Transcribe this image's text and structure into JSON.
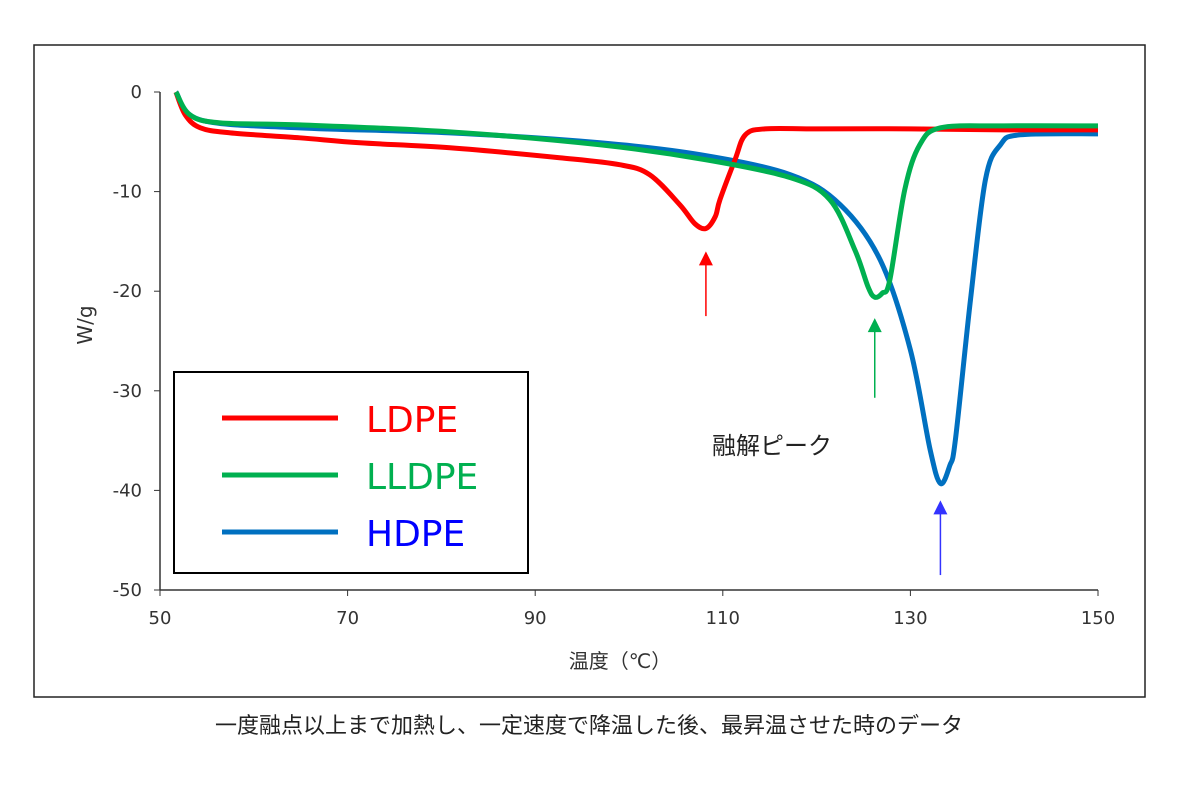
{
  "chart_data": {
    "type": "line",
    "title": "",
    "xlabel": "温度（℃）",
    "ylabel": "W/g",
    "xlim": [
      50,
      150
    ],
    "ylim": [
      -50,
      0
    ],
    "xticks": [
      50,
      70,
      90,
      110,
      130,
      150
    ],
    "yticks": [
      0,
      -10,
      -20,
      -30,
      -40,
      -50
    ],
    "grid": false,
    "legend": "bottom-left",
    "annotation": "融解ピーク",
    "caption": "一度融点以上まで加熱し、一定速度で降温した後、最昇温させた時のデータ",
    "series": [
      {
        "name": "LDPE",
        "color": "#ff0000",
        "label_color": "#ff0000",
        "x": [
          51.7,
          52.7,
          54.3,
          57.5,
          64.9,
          71.3,
          80.9,
          92.6,
          99,
          102.2,
          105.4,
          107,
          108.2,
          109.2,
          109.7,
          111.3,
          112.4,
          114.5,
          120,
          130,
          140,
          150
        ],
        "y": [
          0,
          -2.3,
          -3.6,
          -4.1,
          -4.6,
          -5.1,
          -5.6,
          -6.6,
          -7.3,
          -8.3,
          -11.3,
          -13.2,
          -13.7,
          -12.5,
          -10.8,
          -6.8,
          -4.3,
          -3.7,
          -3.7,
          -3.7,
          -3.8,
          -3.8
        ]
      },
      {
        "name": "LLDPE",
        "color": "#00b050",
        "label_color": "#00b050",
        "x": [
          51.7,
          53.2,
          56.4,
          64.9,
          80.9,
          96.9,
          108.2,
          117.2,
          121.4,
          124.1,
          125.5,
          126.2,
          127,
          127.8,
          129.4,
          131,
          133.2,
          139.6,
          150
        ],
        "y": [
          0,
          -2.3,
          -3.1,
          -3.3,
          -4.0,
          -5.3,
          -6.8,
          -8.6,
          -10.8,
          -15.9,
          -19.6,
          -20.6,
          -20.2,
          -18.9,
          -9.8,
          -5.3,
          -3.6,
          -3.4,
          -3.4
        ]
      },
      {
        "name": "HDPE",
        "color": "#0070c0",
        "label_color": "#0000ff",
        "x": [
          51.7,
          54.3,
          64.9,
          80.9,
          96.9,
          107.6,
          117.2,
          122.5,
          126.8,
          130,
          132.1,
          133.2,
          134.2,
          134.8,
          136.4,
          138,
          139.6,
          141.7,
          150
        ],
        "y": [
          0,
          -2.8,
          -3.6,
          -4.1,
          -5.1,
          -6.3,
          -8.3,
          -11.3,
          -16.9,
          -25.9,
          -35.9,
          -39.3,
          -37.5,
          -34.9,
          -20.9,
          -8.8,
          -5.3,
          -4.3,
          -4.2
        ]
      }
    ],
    "arrows": [
      {
        "color": "#ff0000",
        "x": 108.2,
        "y_tip": -16,
        "y_tail": -22.5
      },
      {
        "color": "#00b050",
        "x": 126.2,
        "y_tip": -22.7,
        "y_tail": -30.7
      },
      {
        "color": "#3333ff",
        "x": 133.2,
        "y_tip": -41,
        "y_tail": -48.5
      }
    ]
  }
}
